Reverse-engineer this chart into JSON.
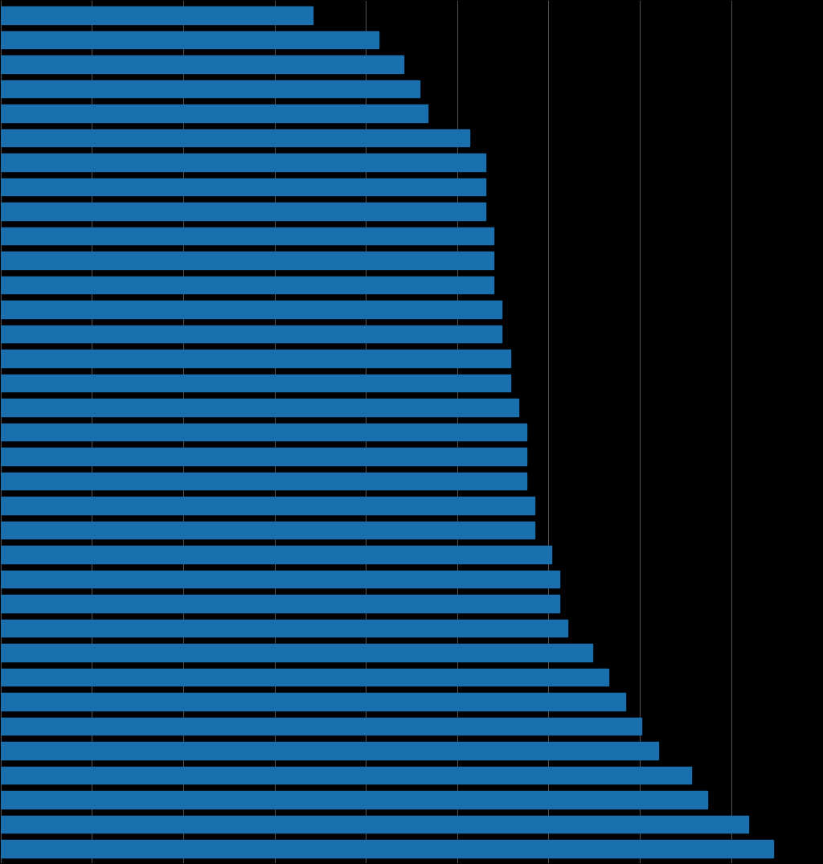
{
  "values": [
    38,
    46,
    49,
    51,
    52,
    57,
    59,
    59,
    59,
    60,
    60,
    60,
    61,
    61,
    62,
    62,
    63,
    64,
    64,
    64,
    65,
    65,
    67,
    68,
    68,
    69,
    72,
    74,
    76,
    78,
    80,
    84,
    86,
    91,
    94
  ],
  "bar_color": "#1a6fad",
  "background_color": "#000000",
  "grid_color": "#555555",
  "xlim": [
    0,
    100
  ],
  "bar_height": 0.72,
  "n_gridlines": 9
}
